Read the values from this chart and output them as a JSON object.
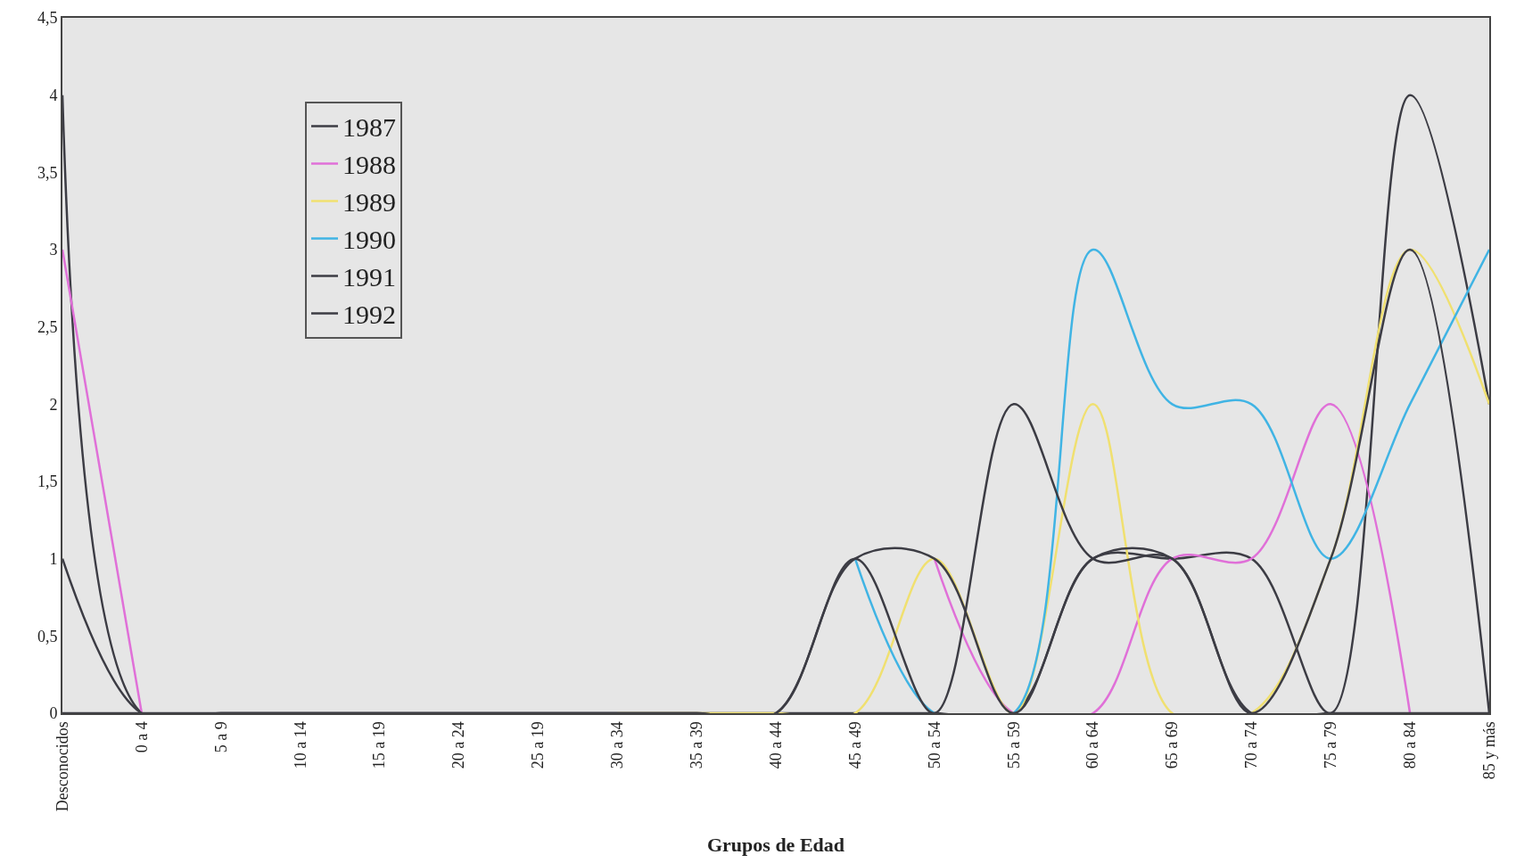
{
  "chart_data": {
    "type": "line",
    "xlabel": "Grupos de Edad",
    "categories": [
      "Desconocidos",
      "0 a 4",
      "5 a 9",
      "10 a 14",
      "15 a 19",
      "20 a 24",
      "25 a 19",
      "30 a 34",
      "35 a 39",
      "40 a 44",
      "45 a 49",
      "50 a 54",
      "55 a 59",
      "60 a 64",
      "65 a 69",
      "70 a 74",
      "75 a 79",
      "80 a 84",
      "85 y más"
    ],
    "series": [
      {
        "name": "1987",
        "color": "#3c3c44",
        "values": [
          4,
          0,
          0,
          0,
          0,
          0,
          0,
          0,
          0,
          0,
          0,
          0,
          0,
          1,
          1,
          1,
          0,
          4,
          2
        ]
      },
      {
        "name": "1988",
        "color": "#e070d8",
        "values": [
          3,
          0,
          null,
          null,
          null,
          null,
          null,
          null,
          null,
          null,
          null,
          1,
          0,
          0,
          1,
          1,
          2,
          0,
          null
        ]
      },
      {
        "name": "1989",
        "color": "#f0e070",
        "values": [
          null,
          null,
          null,
          null,
          null,
          null,
          null,
          0,
          0,
          0,
          0,
          1,
          0,
          2,
          0,
          0,
          1,
          3,
          2
        ]
      },
      {
        "name": "1990",
        "color": "#40b4e4",
        "values": [
          null,
          null,
          null,
          null,
          null,
          null,
          null,
          null,
          null,
          null,
          1,
          0,
          0,
          3,
          2,
          2,
          1,
          2,
          3
        ]
      },
      {
        "name": "1991",
        "color": "#3c3c44",
        "values": [
          0,
          0,
          0,
          0,
          0,
          0,
          0,
          0,
          0,
          0,
          1,
          0,
          2,
          1,
          1,
          0,
          1,
          3,
          0
        ]
      },
      {
        "name": "1992",
        "color": "#3c3c44",
        "values": [
          1,
          0,
          0,
          0,
          0,
          0,
          0,
          0,
          0,
          0,
          1,
          1,
          0,
          1,
          1,
          0,
          0,
          0,
          0
        ]
      }
    ],
    "ylim": [
      0,
      4.5
    ],
    "yticks": [
      {
        "value": 0,
        "label": "0"
      },
      {
        "value": 0.5,
        "label": "0,5"
      },
      {
        "value": 1,
        "label": "1"
      },
      {
        "value": 1.5,
        "label": "1,5"
      },
      {
        "value": 2,
        "label": "2"
      },
      {
        "value": 2.5,
        "label": "2,5"
      },
      {
        "value": 3,
        "label": "3"
      },
      {
        "value": 3.5,
        "label": "3,5"
      },
      {
        "value": 4,
        "label": "4"
      },
      {
        "value": 4.5,
        "label": "4,5"
      }
    ],
    "grid": false,
    "legend": "top left",
    "marker": "none",
    "line_style": "solid"
  }
}
